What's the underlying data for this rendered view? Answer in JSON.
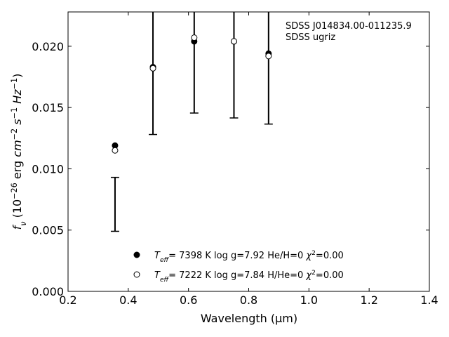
{
  "chart_data": {
    "type": "scatter",
    "x_label": "Wavelength (μm)",
    "y_label_parts": [
      {
        "text": "f",
        "style": "italic"
      },
      {
        "text": "ν",
        "style": "sub"
      },
      {
        "text": " (10",
        "style": "normal"
      },
      {
        "text": "−26",
        "style": "sup"
      },
      {
        "text": " erg ",
        "style": "normal"
      },
      {
        "text": "cm",
        "style": "italic"
      },
      {
        "text": "−2",
        "style": "sup"
      },
      {
        "text": " ",
        "style": "normal"
      },
      {
        "text": "s",
        "style": "italic"
      },
      {
        "text": "−1",
        "style": "sup"
      },
      {
        "text": " ",
        "style": "normal"
      },
      {
        "text": "Hz",
        "style": "italic"
      },
      {
        "text": "−1",
        "style": "sup"
      },
      {
        "text": ")",
        "style": "normal"
      }
    ],
    "annotations": [
      "SDSS J014834.00-011235.9",
      "SDSS ugriz"
    ],
    "xlim": [
      0.2,
      1.4
    ],
    "xticks": [
      0.2,
      0.4,
      0.6,
      0.8,
      {
        "value": 1.0,
        "label": "1.0"
      },
      1.2,
      1.4
    ],
    "ylim": [
      0,
      0.0228
    ],
    "yticks": [
      {
        "value": 0,
        "label": "0.000"
      },
      {
        "value": 0.005,
        "label": "0.005"
      },
      {
        "value": 0.01,
        "label": "0.010"
      },
      {
        "value": 0.015,
        "label": "0.015"
      },
      {
        "value": 0.02,
        "label": "0.020"
      }
    ],
    "error_bars": {
      "x": [
        0.356,
        0.482,
        0.619,
        0.751,
        0.866
      ],
      "low": [
        0.0049,
        0.0128,
        0.01455,
        0.01415,
        0.01365
      ],
      "high": [
        0.0093,
        null,
        null,
        null,
        null
      ],
      "color": "#000000"
    },
    "series": [
      {
        "name_parts": [
          {
            "text": "T",
            "style": "italic"
          },
          {
            "text": "eff",
            "style": "sub"
          },
          {
            "text": "=  7398 K  log g=7.92  He/H=0  ",
            "style": "normal"
          },
          {
            "text": "χ",
            "style": "italic"
          },
          {
            "text": "2",
            "style": "sup"
          },
          {
            "text": "=0.00",
            "style": "normal"
          }
        ],
        "marker": "filled",
        "color": "#000000",
        "x": [
          0.356,
          0.482,
          0.619,
          0.751,
          0.866
        ],
        "values": [
          0.0119,
          0.0183,
          0.0204,
          0.0204,
          0.0194
        ]
      },
      {
        "name_parts": [
          {
            "text": "T",
            "style": "italic"
          },
          {
            "text": "eff",
            "style": "sub"
          },
          {
            "text": "=  7222 K  log g=7.84  H/He=0  ",
            "style": "normal"
          },
          {
            "text": "χ",
            "style": "italic"
          },
          {
            "text": "2",
            "style": "sup"
          },
          {
            "text": "=0.00",
            "style": "normal"
          }
        ],
        "marker": "open",
        "color": "#000000",
        "x": [
          0.356,
          0.482,
          0.619,
          0.751,
          0.866
        ],
        "values": [
          0.0115,
          0.0182,
          0.0207,
          0.0204,
          0.0192
        ]
      }
    ]
  }
}
